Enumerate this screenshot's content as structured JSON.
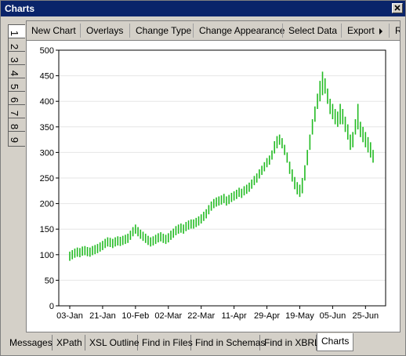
{
  "window": {
    "title": "Charts"
  },
  "toolbar": {
    "items": [
      "New Chart",
      "Overlays",
      "Change Type",
      "Change Appearance",
      "Select Data",
      "Export",
      "R"
    ]
  },
  "side_tabs": [
    "1",
    "2",
    "3",
    "4",
    "5",
    "6",
    "7",
    "8",
    "9"
  ],
  "bottom_tabs": [
    "Messages",
    "XPath",
    "XSL Outline",
    "Find in Files",
    "Find in Schemas",
    "Find in XBRL",
    "Charts"
  ],
  "chart_data": {
    "type": "hilo",
    "color": "#22bb22",
    "grid": true,
    "ylim": [
      0,
      500
    ],
    "yticks": [
      0,
      50,
      100,
      150,
      200,
      250,
      300,
      350,
      400,
      450,
      500
    ],
    "categories": [
      "03-Jan",
      null,
      null,
      null,
      null,
      null,
      null,
      null,
      null,
      null,
      null,
      null,
      null,
      "21-Jan",
      null,
      null,
      null,
      null,
      null,
      null,
      null,
      null,
      null,
      null,
      null,
      null,
      "10-Feb",
      null,
      null,
      null,
      null,
      null,
      null,
      null,
      null,
      null,
      null,
      null,
      null,
      "02-Mar",
      null,
      null,
      null,
      null,
      null,
      null,
      null,
      null,
      null,
      null,
      null,
      null,
      "22-Mar",
      null,
      null,
      null,
      null,
      null,
      null,
      null,
      null,
      null,
      null,
      null,
      null,
      "11-Apr",
      null,
      null,
      null,
      null,
      null,
      null,
      null,
      null,
      null,
      null,
      null,
      null,
      "29-Apr",
      null,
      null,
      null,
      null,
      null,
      null,
      null,
      null,
      null,
      null,
      null,
      null,
      "19-May",
      null,
      null,
      null,
      null,
      null,
      null,
      null,
      null,
      null,
      null,
      null,
      null,
      "05-Jun",
      null,
      null,
      null,
      null,
      null,
      null,
      null,
      null,
      null,
      null,
      null,
      null,
      "25-Jun",
      null,
      null,
      null
    ],
    "high": [
      106,
      109,
      112,
      114,
      113,
      116,
      117,
      115,
      114,
      117,
      119,
      121,
      124,
      127,
      131,
      134,
      133,
      131,
      134,
      136,
      135,
      137,
      139,
      141,
      147,
      154,
      159,
      154,
      149,
      145,
      141,
      137,
      134,
      136,
      139,
      142,
      144,
      141,
      139,
      142,
      147,
      151,
      156,
      159,
      161,
      159,
      164,
      167,
      169,
      169,
      172,
      175,
      179,
      184,
      189,
      197,
      204,
      209,
      212,
      214,
      216,
      219,
      214,
      217,
      221,
      224,
      227,
      231,
      229,
      234,
      237,
      241,
      247,
      254,
      259,
      267,
      274,
      281,
      289,
      294,
      304,
      322,
      332,
      335,
      328,
      315,
      300,
      282,
      267,
      252,
      242,
      237,
      250,
      275,
      305,
      335,
      365,
      390,
      415,
      440,
      458,
      445,
      425,
      405,
      395,
      385,
      380,
      395,
      385,
      370,
      355,
      335,
      340,
      365,
      395,
      360,
      350,
      340,
      330,
      320,
      305
    ],
    "low": [
      88,
      91,
      94,
      96,
      95,
      98,
      99,
      97,
      96,
      99,
      101,
      103,
      106,
      109,
      113,
      116,
      115,
      113,
      116,
      118,
      117,
      119,
      121,
      123,
      129,
      136,
      141,
      136,
      131,
      127,
      123,
      119,
      116,
      118,
      121,
      124,
      126,
      123,
      121,
      124,
      129,
      133,
      138,
      141,
      143,
      141,
      146,
      149,
      151,
      151,
      154,
      157,
      161,
      166,
      171,
      179,
      186,
      191,
      194,
      196,
      198,
      201,
      196,
      199,
      203,
      206,
      209,
      213,
      211,
      216,
      219,
      223,
      229,
      236,
      241,
      249,
      256,
      263,
      271,
      276,
      286,
      298,
      308,
      315,
      308,
      295,
      280,
      258,
      243,
      228,
      218,
      213,
      220,
      245,
      275,
      305,
      335,
      360,
      385,
      400,
      412,
      415,
      395,
      375,
      365,
      355,
      350,
      355,
      355,
      340,
      325,
      305,
      310,
      335,
      345,
      330,
      320,
      310,
      300,
      290,
      280
    ]
  }
}
